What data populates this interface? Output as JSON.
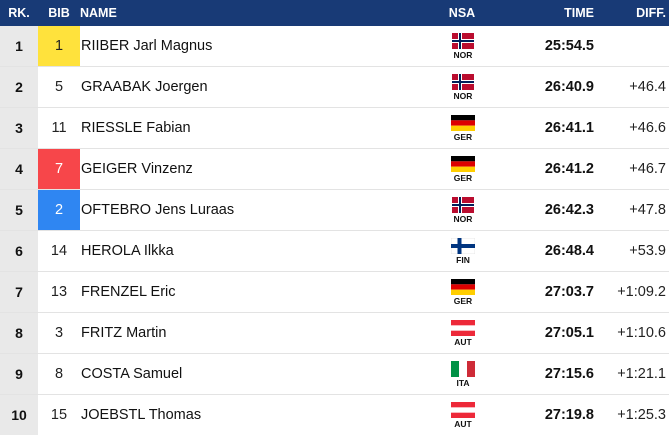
{
  "header": {
    "rank": "RK.",
    "bib": "BIB",
    "name": "NAME",
    "nsa": "NSA",
    "time": "TIME",
    "diff": "DIFF."
  },
  "colors": {
    "header_bg": "#183a76",
    "bib_yellow": "#ffe23c",
    "bib_red": "#f7464a",
    "bib_blue": "#2f86f2"
  },
  "rows": [
    {
      "rank": "1",
      "bib": "1",
      "bib_color": "yellow",
      "name": "RIIBER Jarl Magnus",
      "nsa": "NOR",
      "time": "25:54.5",
      "diff": ""
    },
    {
      "rank": "2",
      "bib": "5",
      "bib_color": "none",
      "name": "GRAABAK Joergen",
      "nsa": "NOR",
      "time": "26:40.9",
      "diff": "+46.4"
    },
    {
      "rank": "3",
      "bib": "11",
      "bib_color": "none",
      "name": "RIESSLE Fabian",
      "nsa": "GER",
      "time": "26:41.1",
      "diff": "+46.6"
    },
    {
      "rank": "4",
      "bib": "7",
      "bib_color": "red",
      "name": "GEIGER Vinzenz",
      "nsa": "GER",
      "time": "26:41.2",
      "diff": "+46.7"
    },
    {
      "rank": "5",
      "bib": "2",
      "bib_color": "blue",
      "name": "OFTEBRO Jens Luraas",
      "nsa": "NOR",
      "time": "26:42.3",
      "diff": "+47.8"
    },
    {
      "rank": "6",
      "bib": "14",
      "bib_color": "none",
      "name": "HEROLA Ilkka",
      "nsa": "FIN",
      "time": "26:48.4",
      "diff": "+53.9"
    },
    {
      "rank": "7",
      "bib": "13",
      "bib_color": "none",
      "name": "FRENZEL Eric",
      "nsa": "GER",
      "time": "27:03.7",
      "diff": "+1:09.2"
    },
    {
      "rank": "8",
      "bib": "3",
      "bib_color": "none",
      "name": "FRITZ Martin",
      "nsa": "AUT",
      "time": "27:05.1",
      "diff": "+1:10.6"
    },
    {
      "rank": "9",
      "bib": "8",
      "bib_color": "none",
      "name": "COSTA Samuel",
      "nsa": "ITA",
      "time": "27:15.6",
      "diff": "+1:21.1"
    },
    {
      "rank": "10",
      "bib": "15",
      "bib_color": "none",
      "name": "JOEBSTL Thomas",
      "nsa": "AUT",
      "time": "27:19.8",
      "diff": "+1:25.3"
    }
  ]
}
